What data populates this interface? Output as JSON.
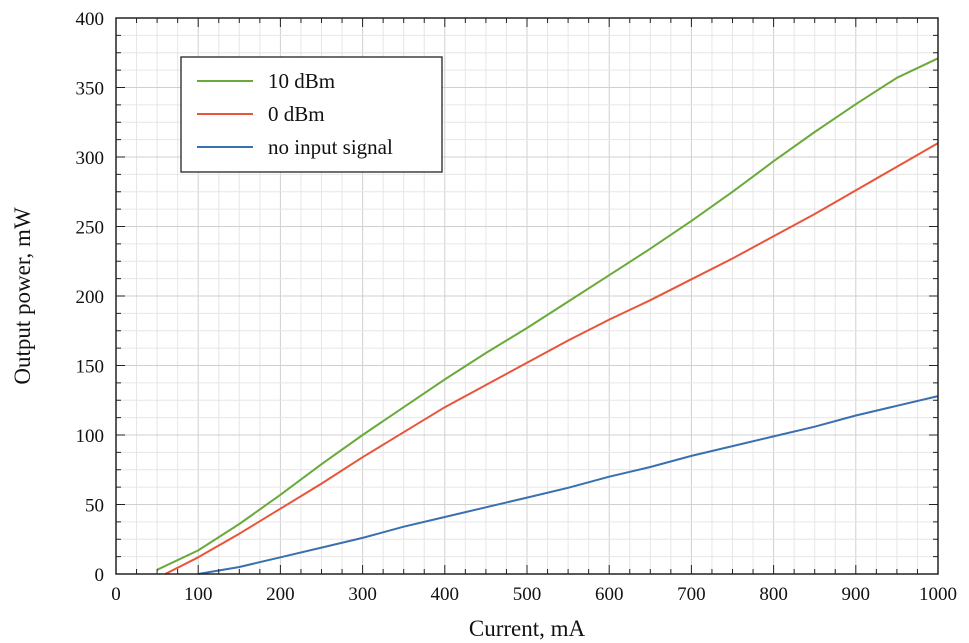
{
  "chart_data": {
    "type": "line",
    "title": "",
    "xlabel": "Current, mA",
    "ylabel": "Output power, mW",
    "xlim": [
      0,
      1000
    ],
    "ylim": [
      0,
      400
    ],
    "xticks": [
      0,
      100,
      200,
      300,
      400,
      500,
      600,
      700,
      800,
      900,
      1000
    ],
    "yticks": [
      0,
      50,
      100,
      150,
      200,
      250,
      300,
      350,
      400
    ],
    "grid": true,
    "legend_position": "top-left",
    "series": [
      {
        "name": "10 dBm",
        "color": "#6aaa3a",
        "x": [
          50,
          100,
          150,
          200,
          250,
          300,
          350,
          400,
          450,
          500,
          550,
          600,
          650,
          700,
          750,
          800,
          850,
          900,
          950,
          1000
        ],
        "y": [
          3,
          17,
          36,
          57,
          79,
          100,
          120,
          140,
          159,
          177,
          196,
          215,
          234,
          254,
          275,
          297,
          318,
          338,
          357,
          371
        ]
      },
      {
        "name": "0 dBm",
        "color": "#e8553a",
        "x": [
          60,
          100,
          150,
          200,
          250,
          300,
          350,
          400,
          450,
          500,
          550,
          600,
          650,
          700,
          750,
          800,
          850,
          900,
          950,
          1000
        ],
        "y": [
          0,
          12,
          29,
          47,
          65,
          84,
          102,
          120,
          136,
          152,
          168,
          183,
          197,
          212,
          227,
          243,
          259,
          276,
          293,
          310
        ]
      },
      {
        "name": "no input signal",
        "color": "#3a6fb0",
        "x": [
          100,
          150,
          200,
          250,
          300,
          350,
          400,
          450,
          500,
          550,
          600,
          650,
          700,
          750,
          800,
          850,
          900,
          950,
          1000
        ],
        "y": [
          0,
          5,
          12,
          19,
          26,
          34,
          41,
          48,
          55,
          62,
          70,
          77,
          85,
          92,
          99,
          106,
          114,
          121,
          128
        ]
      }
    ]
  }
}
